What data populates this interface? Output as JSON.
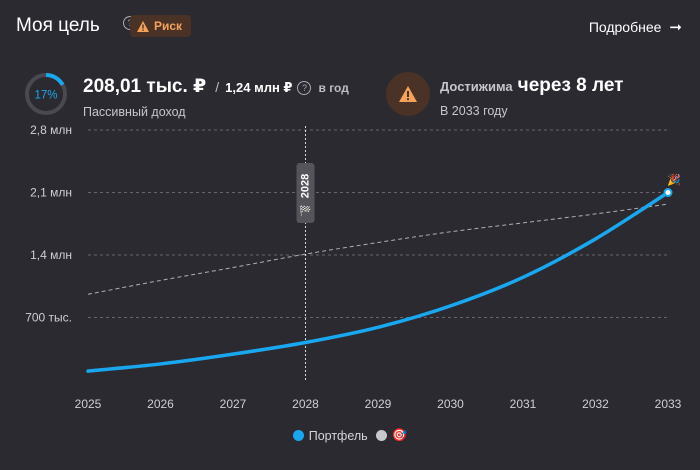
{
  "header": {
    "title": "Моя цель",
    "risk_badge": "Риск",
    "details_link": "Подробнее",
    "arrow_glyph": "➞",
    "help_glyph": "?"
  },
  "stats": {
    "progress_percent": 17,
    "progress_label": "17%",
    "income_value": "208,01 тыс. ₽",
    "income_separator": "/",
    "income_target": "1,24 млн ₽",
    "income_period": "в год",
    "income_label": "Пассивный доход",
    "goal_label": "Достижима",
    "goal_value": "через 8 лет",
    "goal_sub": "В 2033 году"
  },
  "colors": {
    "portfolio": "#19a8ef",
    "target": "#c8c7cc",
    "warning": "#f5a25a",
    "background": "#2b2a31"
  },
  "chart_data": {
    "type": "line",
    "x": [
      2025,
      2026,
      2027,
      2028,
      2029,
      2030,
      2031,
      2032,
      2033
    ],
    "tick_labels_x": [
      "2025",
      "2026",
      "2027",
      "2028",
      "2029",
      "2030",
      "2031",
      "2032",
      "2033"
    ],
    "y_ticks": [
      700000,
      1400000,
      2100000,
      2800000
    ],
    "tick_labels_y": [
      "700 тыс.",
      "1,4 млн",
      "2,1 млн",
      "2,8 млн"
    ],
    "ylim": [
      0,
      2800000
    ],
    "xlim": [
      2025,
      2033
    ],
    "series": [
      {
        "name": "Портфель",
        "style": "solid",
        "values": [
          100000,
          180000,
          290000,
          420000,
          590000,
          830000,
          1150000,
          1580000,
          2100000
        ]
      },
      {
        "name": "Цель",
        "style": "dashed",
        "values": [
          960000,
          1115000,
          1260000,
          1410000,
          1540000,
          1660000,
          1760000,
          1860000,
          1970000
        ]
      }
    ],
    "marker": {
      "x": 2028,
      "label": "2028",
      "flag_glyph": "🏁"
    },
    "end_icon_glyph": "🎉",
    "legend": [
      {
        "name": "Портфель"
      },
      {
        "name": "",
        "icon_glyph": "🎯"
      }
    ]
  }
}
